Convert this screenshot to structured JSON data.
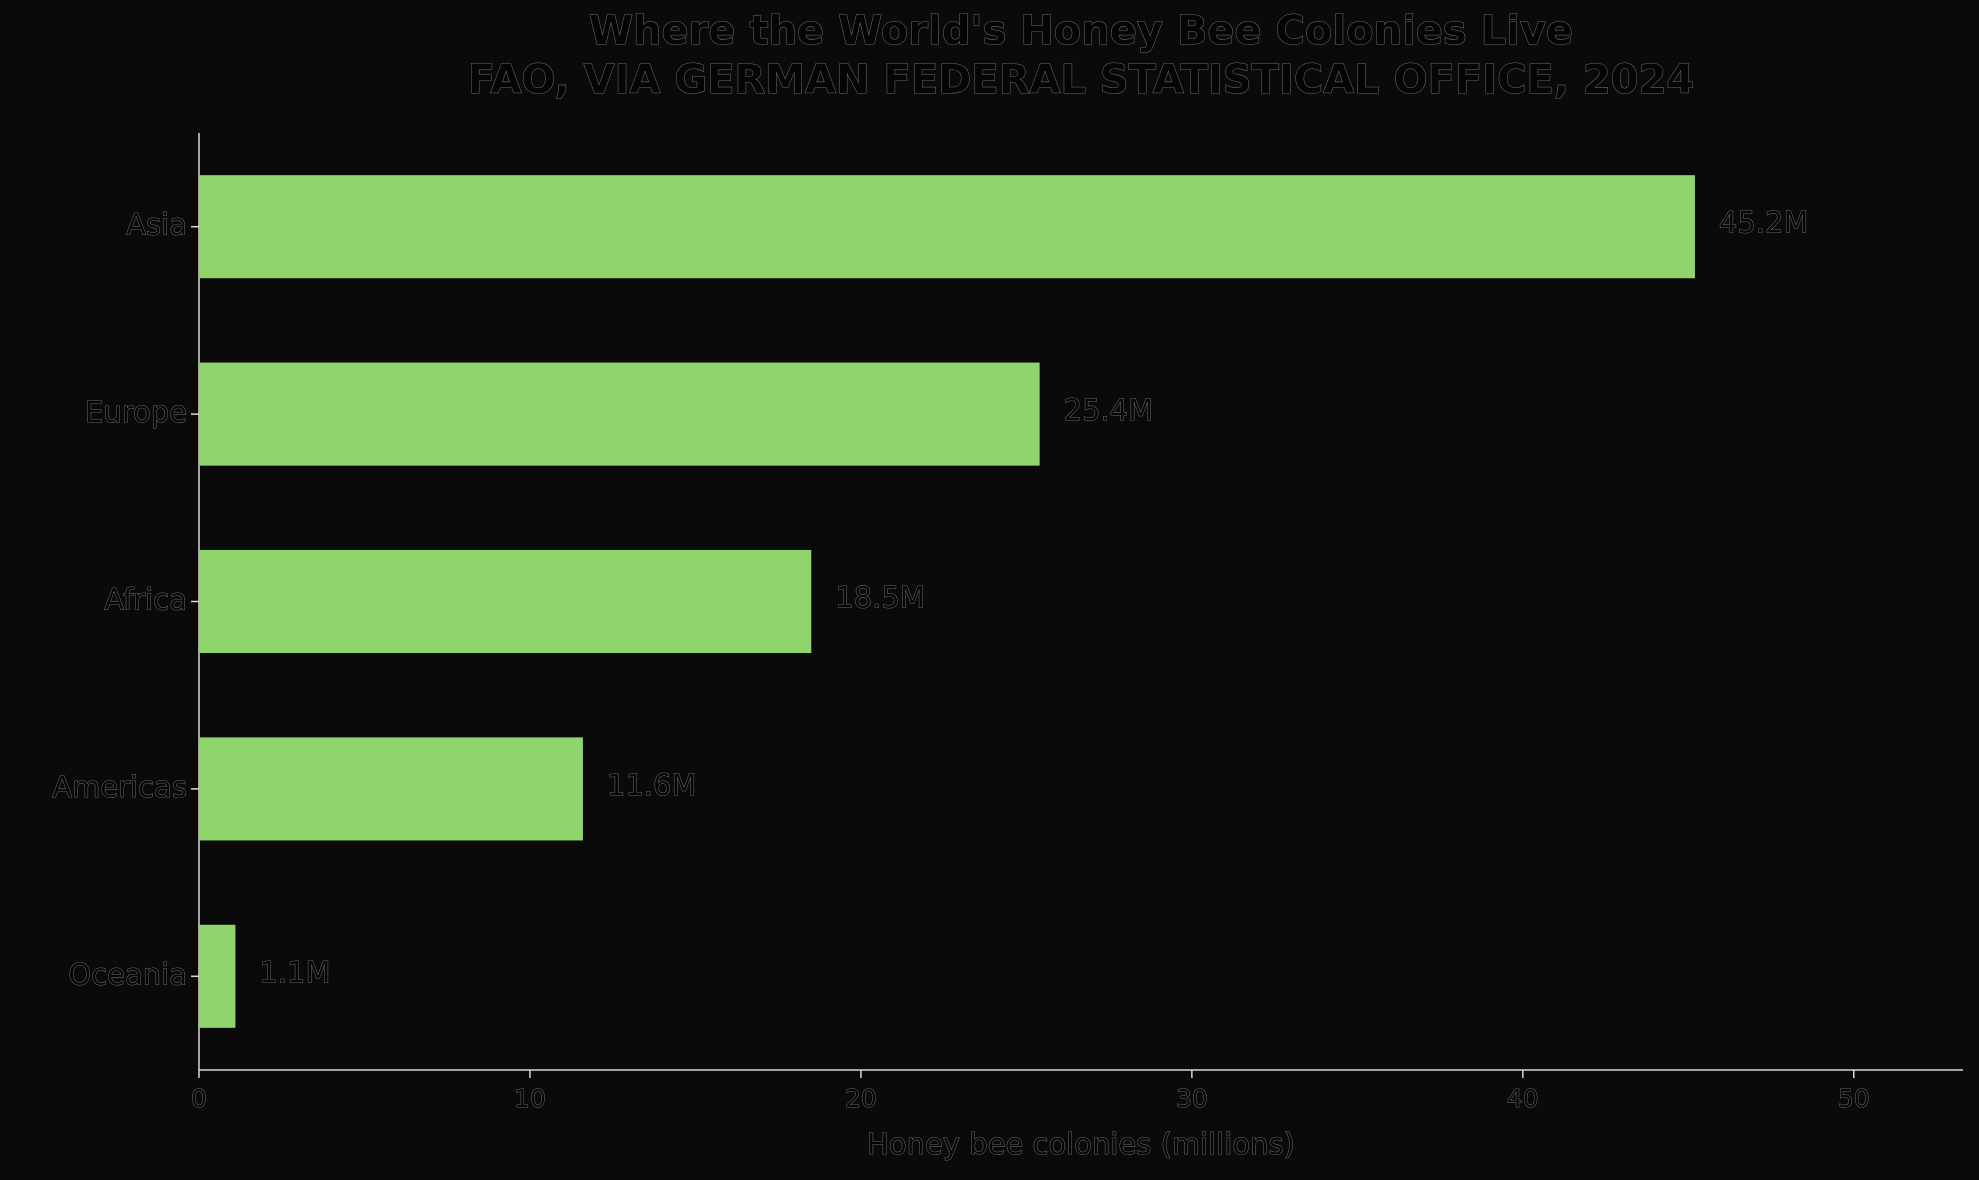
{
  "chart_data": {
    "type": "bar",
    "orientation": "horizontal",
    "title": "Where the World's Honey Bee Colonies Live",
    "subtitle": "FAO, VIA GERMAN FEDERAL STATISTICAL OFFICE, 2024",
    "xlabel": "Honey bee colonies (millions)",
    "categories": [
      "Asia",
      "Europe",
      "Africa",
      "Americas",
      "Oceania"
    ],
    "values": [
      45.2,
      25.4,
      18.5,
      11.6,
      1.1
    ],
    "value_labels": [
      "45.2M",
      "25.4M",
      "18.5M",
      "11.6M",
      "1.1M"
    ],
    "color": "#90d46c",
    "xlim": [
      0,
      53.3
    ],
    "xticks": [
      0,
      10,
      20,
      30,
      40,
      50
    ],
    "grid": false
  }
}
